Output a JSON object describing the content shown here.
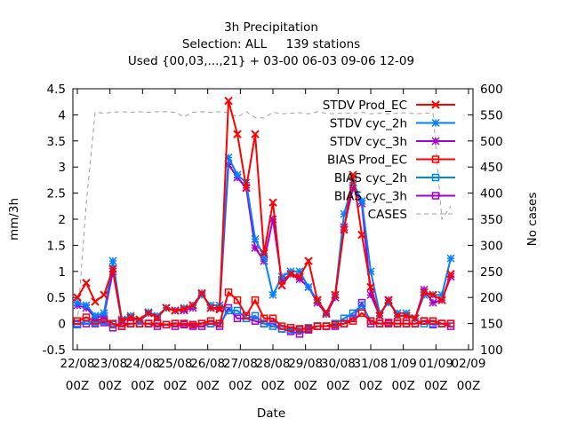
{
  "chart_data": {
    "type": "line",
    "title": "3h Precipitation",
    "subtitle_lines": [
      "Selection: ALL     139 stations",
      "Used {00,03,...,21} + 03-00 06-03 09-06 12-09"
    ],
    "xlabel": "Date",
    "ylabel": "mm/3h",
    "y2label": "No cases",
    "xlim": [
      0,
      22
    ],
    "ylim": [
      -0.5,
      4.5
    ],
    "y2lim": [
      100,
      600
    ],
    "x_ticks": [
      {
        "x": 0,
        "date": "22/08",
        "hour": "00Z"
      },
      {
        "x": 2,
        "date": "23/08",
        "hour": "00Z"
      },
      {
        "x": 4,
        "date": "24/08",
        "hour": "00Z"
      },
      {
        "x": 6,
        "date": "25/08",
        "hour": "00Z"
      },
      {
        "x": 8,
        "date": "26/08",
        "hour": "00Z"
      },
      {
        "x": 10,
        "date": "27/08",
        "hour": "00Z"
      },
      {
        "x": 12,
        "date": "28/08",
        "hour": "00Z"
      },
      {
        "x": 14,
        "date": "29/08",
        "hour": "00Z"
      },
      {
        "x": 16,
        "date": "30/08",
        "hour": "00Z"
      },
      {
        "x": 18,
        "date": "31/08",
        "hour": "00Z"
      },
      {
        "x": 20,
        "date": "1/09",
        "hour": "00Z"
      },
      {
        "x": 22,
        "date": "01/09",
        "hour": "00Z"
      },
      {
        "x": 24,
        "date": "02/09",
        "hour": "00Z"
      }
    ],
    "y_ticks": [
      "-0.5",
      "0",
      "0.5",
      "1",
      "1.5",
      "2",
      "2.5",
      "3",
      "3.5",
      "4",
      "4.5"
    ],
    "y2_ticks": [
      "100",
      "150",
      "200",
      "250",
      "300",
      "350",
      "400",
      "450",
      "500",
      "550",
      "600"
    ],
    "legend_position": "top-right",
    "grid": false,
    "series": [
      {
        "name": "STDV Prod_EC",
        "color": "#ff0000",
        "marker": "x-cross",
        "axis": "y",
        "x": [
          0,
          0.5,
          1,
          1.5,
          2,
          2.5,
          3,
          3.5,
          4,
          4.5,
          5,
          5.5,
          6,
          6.5,
          7,
          7.5,
          8,
          8.5,
          9,
          9.5,
          10,
          10.5,
          11,
          11.5,
          12,
          12.5,
          13,
          13.5,
          14,
          14.5,
          15,
          15.5,
          16,
          16.5,
          17,
          17.5,
          18,
          18.5,
          19,
          19.5,
          20,
          20.5,
          21
        ],
        "values": [
          0.5,
          0.78,
          0.42,
          0.55,
          1.05,
          0.05,
          0.12,
          0.08,
          0.2,
          0.12,
          0.3,
          0.25,
          0.28,
          0.35,
          0.58,
          0.3,
          0.27,
          4.27,
          3.63,
          2.6,
          3.63,
          1.35,
          2.32,
          0.73,
          0.95,
          0.9,
          1.2,
          0.45,
          0.2,
          0.55,
          1.8,
          2.85,
          1.7,
          0.7,
          0.15,
          0.45,
          0.15,
          0.15,
          0.1,
          0.6,
          0.55,
          0.45,
          0.95
        ]
      },
      {
        "name": "STDV cyc_2h",
        "color": "#0080ff",
        "marker": "star",
        "axis": "y",
        "x": [
          0,
          0.5,
          1,
          1.5,
          2,
          2.5,
          3,
          3.5,
          4,
          4.5,
          5,
          5.5,
          6,
          6.5,
          7,
          7.5,
          8,
          8.5,
          9,
          9.5,
          10,
          10.5,
          11,
          11.5,
          12,
          12.5,
          13,
          13.5,
          14,
          14.5,
          15,
          15.5,
          16,
          16.5,
          17,
          17.5,
          18,
          18.5,
          19,
          19.5,
          20,
          20.5,
          21
        ],
        "values": [
          0.4,
          0.35,
          0.15,
          0.2,
          1.2,
          0.08,
          0.15,
          0.05,
          0.22,
          0.15,
          0.3,
          0.25,
          0.3,
          0.35,
          0.55,
          0.35,
          0.35,
          3.18,
          2.85,
          2.7,
          1.62,
          1.28,
          0.55,
          0.9,
          1.0,
          1.0,
          0.7,
          0.45,
          0.2,
          0.55,
          2.1,
          2.7,
          2.35,
          1.0,
          0.2,
          0.4,
          0.2,
          0.2,
          0.1,
          0.55,
          0.55,
          0.55,
          1.25
        ]
      },
      {
        "name": "STDV cyc_3h",
        "color": "#a000d0",
        "marker": "star",
        "axis": "y",
        "x": [
          0,
          0.5,
          1,
          1.5,
          2,
          2.5,
          3,
          3.5,
          4,
          4.5,
          5,
          5.5,
          6,
          6.5,
          7,
          7.5,
          8,
          8.5,
          9,
          9.5,
          10,
          10.5,
          11,
          11.5,
          12,
          12.5,
          13,
          13.5,
          14,
          14.5,
          15,
          15.5,
          16,
          16.5,
          17,
          17.5,
          18,
          18.5,
          19,
          19.5,
          20,
          20.5,
          21
        ],
        "values": [
          0.35,
          0.3,
          0.12,
          0.15,
          1.0,
          0.05,
          0.12,
          0.05,
          0.2,
          0.12,
          0.3,
          0.25,
          0.25,
          0.3,
          0.58,
          0.3,
          0.3,
          3.05,
          2.8,
          2.6,
          1.45,
          1.2,
          2.0,
          0.82,
          0.95,
          0.85,
          0.7,
          0.4,
          0.18,
          0.5,
          1.85,
          2.6,
          2.3,
          0.55,
          0.15,
          0.45,
          0.15,
          0.15,
          0.1,
          0.65,
          0.4,
          0.45,
          0.9
        ]
      },
      {
        "name": "BIAS Prod_EC",
        "color": "#ff0000",
        "marker": "square",
        "axis": "y",
        "x": [
          0,
          0.5,
          1,
          1.5,
          2,
          2.5,
          3,
          3.5,
          4,
          4.5,
          5,
          5.5,
          6,
          6.5,
          7,
          7.5,
          8,
          8.5,
          9,
          9.5,
          10,
          10.5,
          11,
          11.5,
          12,
          12.5,
          13,
          13.5,
          14,
          14.5,
          15,
          15.5,
          16,
          16.5,
          17,
          17.5,
          18,
          18.5,
          19,
          19.5,
          20,
          20.5,
          21
        ],
        "values": [
          0.05,
          0.12,
          0.05,
          0.1,
          0.0,
          -0.05,
          0.0,
          0.0,
          0.0,
          0.0,
          -0.02,
          0.0,
          0.0,
          -0.02,
          0.0,
          0.05,
          0.0,
          0.6,
          0.45,
          0.15,
          0.45,
          0.1,
          0.1,
          -0.05,
          -0.08,
          -0.1,
          -0.1,
          -0.05,
          -0.05,
          -0.02,
          0.0,
          0.05,
          0.2,
          0.05,
          0.0,
          0.0,
          0.0,
          0.0,
          0.0,
          0.05,
          0.05,
          0.0,
          0.0
        ]
      },
      {
        "name": "BIAS cyc_2h",
        "color": "#0080ff",
        "marker": "square",
        "axis": "y",
        "x": [
          0,
          0.5,
          1,
          1.5,
          2,
          2.5,
          3,
          3.5,
          4,
          4.5,
          5,
          5.5,
          6,
          6.5,
          7,
          7.5,
          8,
          8.5,
          9,
          9.5,
          10,
          10.5,
          11,
          11.5,
          12,
          12.5,
          13,
          13.5,
          14,
          14.5,
          15,
          15.5,
          16,
          16.5,
          17,
          17.5,
          18,
          18.5,
          19,
          19.5,
          20,
          20.5,
          21
        ],
        "values": [
          -0.02,
          0.05,
          0.02,
          0.05,
          -0.02,
          -0.05,
          0.0,
          0.0,
          0.0,
          0.0,
          -0.02,
          0.0,
          0.0,
          -0.02,
          0.0,
          0.0,
          0.0,
          0.25,
          0.25,
          0.1,
          0.15,
          0.0,
          -0.05,
          -0.1,
          -0.12,
          -0.12,
          -0.08,
          -0.05,
          -0.05,
          0.0,
          0.1,
          0.2,
          0.35,
          0.05,
          0.0,
          0.0,
          0.0,
          0.0,
          0.0,
          0.0,
          0.0,
          0.0,
          0.0
        ]
      },
      {
        "name": "BIAS cyc_3h",
        "color": "#a000d0",
        "marker": "square",
        "axis": "y",
        "x": [
          0,
          0.5,
          1,
          1.5,
          2,
          2.5,
          3,
          3.5,
          4,
          4.5,
          5,
          5.5,
          6,
          6.5,
          7,
          7.5,
          8,
          8.5,
          9,
          9.5,
          10,
          10.5,
          11,
          11.5,
          12,
          12.5,
          13,
          13.5,
          14,
          14.5,
          15,
          15.5,
          16,
          16.5,
          17,
          17.5,
          18,
          18.5,
          19,
          19.5,
          20,
          20.5,
          21
        ],
        "values": [
          0.0,
          0.0,
          0.0,
          0.02,
          -0.08,
          0.0,
          0.0,
          0.0,
          0.0,
          -0.05,
          -0.02,
          -0.05,
          -0.02,
          -0.05,
          -0.05,
          0.0,
          -0.05,
          0.3,
          0.1,
          0.1,
          0.05,
          0.0,
          0.0,
          -0.1,
          -0.15,
          -0.2,
          -0.12,
          -0.05,
          -0.05,
          -0.05,
          0.0,
          0.1,
          0.4,
          0.0,
          0.0,
          0.02,
          0.0,
          0.0,
          0.0,
          0.05,
          -0.02,
          0.0,
          -0.05
        ]
      },
      {
        "name": "CASES",
        "color": "#a0a0a0",
        "marker": "none",
        "dashed": true,
        "axis": "y2",
        "x": [
          0,
          0.5,
          1,
          1.5,
          2,
          2.5,
          3,
          3.5,
          4,
          4.5,
          5,
          5.5,
          6,
          6.5,
          7,
          7.5,
          8,
          8.5,
          9,
          9.5,
          10,
          10.5,
          11,
          11.5,
          12,
          12.5,
          13,
          13.5,
          14,
          14.5,
          15,
          15.5,
          16,
          16.5,
          17,
          17.5,
          18,
          18.5,
          19,
          19.5,
          20,
          20.5,
          21
        ],
        "values": [
          150,
          380,
          555,
          553,
          555,
          556,
          555,
          556,
          555,
          556,
          556,
          555,
          546,
          555,
          556,
          555,
          556,
          554,
          546,
          556,
          545,
          544,
          555,
          552,
          553,
          554,
          552,
          556,
          553,
          552,
          554,
          553,
          555,
          552,
          553,
          552,
          553,
          554,
          552,
          553,
          554,
          350,
          375
        ]
      }
    ]
  }
}
